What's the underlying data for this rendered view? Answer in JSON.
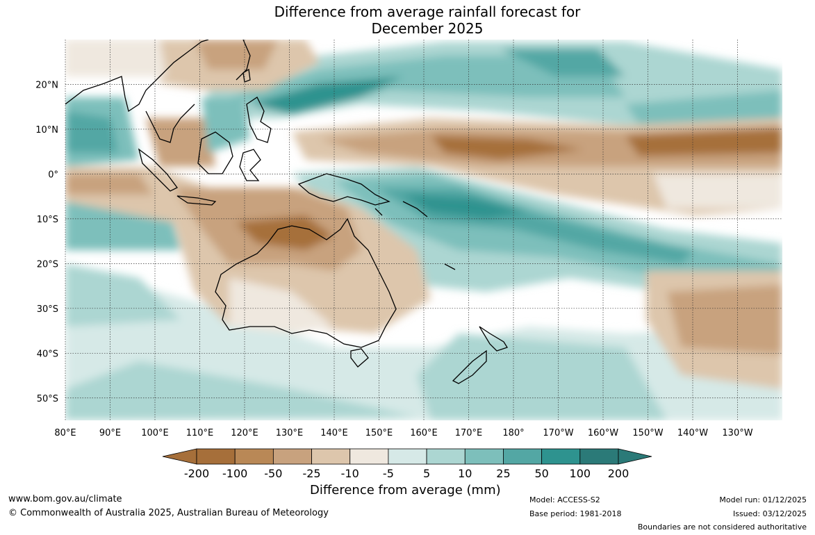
{
  "title_line1": "Difference from average rainfall forecast for",
  "title_line2": "December 2025",
  "map": {
    "lon_labels": [
      "80°E",
      "90°E",
      "100°E",
      "110°E",
      "120°E",
      "130°E",
      "140°E",
      "150°E",
      "160°E",
      "170°E",
      "180°",
      "170°W",
      "160°W",
      "150°W",
      "140°W",
      "130°W"
    ],
    "lat_labels": [
      "20°N",
      "10°N",
      "0°",
      "10°S",
      "20°S",
      "30°S",
      "40°S",
      "50°S"
    ],
    "lon_values": [
      80,
      90,
      100,
      110,
      120,
      130,
      140,
      150,
      160,
      170,
      180,
      190,
      200,
      210,
      220,
      230
    ],
    "lat_values": [
      20,
      10,
      0,
      -10,
      -20,
      -30,
      -40,
      -50
    ],
    "lon_range": [
      80,
      240
    ],
    "lat_range": [
      -55,
      30
    ],
    "grid": true
  },
  "colorbar": {
    "tick_labels": [
      "-200",
      "-100",
      "-50",
      "-25",
      "-10",
      "-5",
      "5",
      "10",
      "25",
      "50",
      "100",
      "200"
    ],
    "colors": [
      "#a66f3a",
      "#b98856",
      "#c8a27e",
      "#ddc6ac",
      "#efe8df",
      "#ffffff",
      "#d6e9e7",
      "#acd6d2",
      "#7dbfbb",
      "#53a7a4",
      "#2e938f",
      "#2b7a78"
    ],
    "label": "Difference from average (mm)"
  },
  "footer": {
    "website": "www.bom.gov.au/climate",
    "copyright": "© Commonwealth of Australia 2025, Australian Bureau of Meteorology",
    "model": "Model: ACCESS-S2",
    "base_period": "Base period: 1981-2018",
    "model_run": "Model run: 01/12/2025",
    "issued": "Issued: 03/12/2025",
    "disclaimer": "Boundaries are not considered authoritative"
  }
}
